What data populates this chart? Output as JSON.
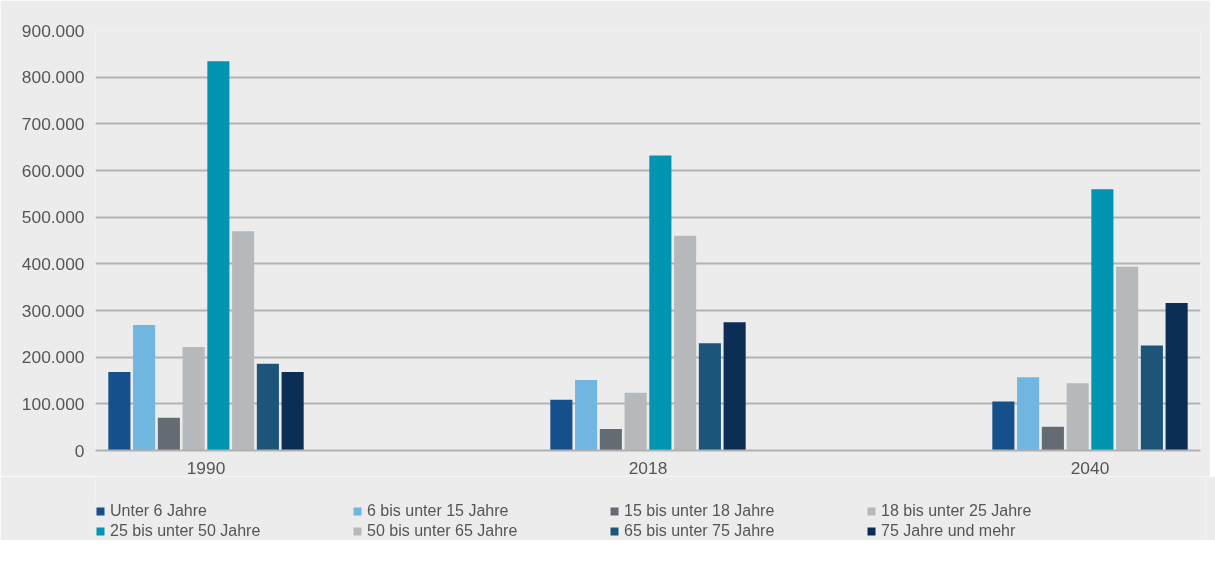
{
  "chart_data": {
    "type": "bar",
    "categories": [
      "1990",
      "2018",
      "2040"
    ],
    "series": [
      {
        "name": "Unter 6 Jahre",
        "color": "#154f8c",
        "values": [
          168000,
          109000,
          105000
        ]
      },
      {
        "name": "6 bis unter 15 Jahre",
        "color": "#71b6e0",
        "values": [
          269000,
          151000,
          157000
        ]
      },
      {
        "name": "15 bis unter 18 Jahre",
        "color": "#656b73",
        "values": [
          70000,
          46000,
          51000
        ]
      },
      {
        "name": "18 bis unter 25 Jahre",
        "color": "#b5b9bb",
        "values": [
          222000,
          124000,
          144000
        ]
      },
      {
        "name": "25 bis unter 50 Jahre",
        "color": "#0195b2",
        "values": [
          834000,
          632000,
          560000
        ]
      },
      {
        "name": "50 bis unter 65 Jahre",
        "color": "#b5b9bb",
        "values": [
          470000,
          460000,
          394000
        ]
      },
      {
        "name": "65 bis unter 75 Jahre",
        "color": "#1c5579",
        "values": [
          186000,
          230000,
          225000
        ]
      },
      {
        "name": "75 Jahre und mehr",
        "color": "#0c2e55",
        "values": [
          168000,
          275000,
          316000
        ]
      }
    ],
    "ylim": [
      0,
      900000
    ],
    "yticks": [
      {
        "value": 0,
        "label": "0"
      },
      {
        "value": 100000,
        "label": "100.000"
      },
      {
        "value": 200000,
        "label": "200.000"
      },
      {
        "value": 300000,
        "label": "300.000"
      },
      {
        "value": 400000,
        "label": "400.000"
      },
      {
        "value": 500000,
        "label": "500.000"
      },
      {
        "value": 600000,
        "label": "600.000"
      },
      {
        "value": 700000,
        "label": "700.000"
      },
      {
        "value": 800000,
        "label": "800.000"
      },
      {
        "value": 900000,
        "label": "900.000"
      }
    ],
    "grid": "y",
    "legend": "bottom"
  }
}
